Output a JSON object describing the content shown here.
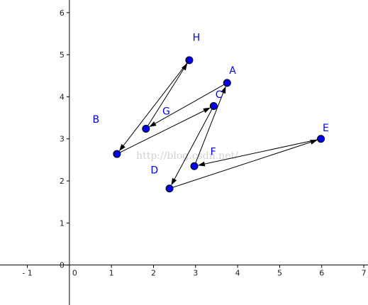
{
  "canvas": {
    "background": "#ffffff"
  },
  "axes": {
    "x_range": [
      -1.65,
      7.1
    ],
    "y_range": [
      -0.95,
      6.3
    ],
    "x_ticks": [
      -1,
      1,
      2,
      3,
      4,
      5,
      6,
      7
    ],
    "y_ticks": [
      0,
      1,
      2,
      3,
      4,
      5,
      6
    ],
    "x_tick_labels": [
      "- 1",
      "1",
      "2",
      "3",
      "4",
      "5",
      "6",
      "7"
    ],
    "y_tick_labels": [
      "0",
      "1",
      "2",
      "3",
      "4",
      "5",
      "6"
    ],
    "origin_x_label": "0",
    "axis_color": "#000000"
  },
  "points": [
    {
      "name": "A",
      "x": 3.75,
      "y": 4.33
    },
    {
      "name": "B",
      "x": 1.13,
      "y": 2.64
    },
    {
      "name": "C",
      "x": 3.43,
      "y": 3.78
    },
    {
      "name": "D",
      "x": 2.38,
      "y": 1.82
    },
    {
      "name": "E",
      "x": 5.98,
      "y": 3.0
    },
    {
      "name": "F",
      "x": 2.97,
      "y": 2.35
    },
    {
      "name": "G",
      "x": 1.82,
      "y": 3.24
    },
    {
      "name": "H",
      "x": 2.85,
      "y": 4.87
    }
  ],
  "labels": [
    {
      "text": "A",
      "x": 3.8,
      "y": 4.55
    },
    {
      "text": "B",
      "x": 0.55,
      "y": 3.38
    },
    {
      "text": "C",
      "x": 3.47,
      "y": 3.97
    },
    {
      "text": "D",
      "x": 1.93,
      "y": 2.18
    },
    {
      "text": "E",
      "x": 6.02,
      "y": 3.18
    },
    {
      "text": "F",
      "x": 3.35,
      "y": 2.62
    },
    {
      "text": "G",
      "x": 2.21,
      "y": 3.58
    },
    {
      "text": "H",
      "x": 2.93,
      "y": 5.33
    }
  ],
  "arrows": [
    {
      "from": "A",
      "to": "G"
    },
    {
      "from": "G",
      "to": "H"
    },
    {
      "from": "H",
      "to": "B"
    },
    {
      "from": "B",
      "to": "C"
    },
    {
      "from": "C",
      "to": "D"
    },
    {
      "from": "D",
      "to": "E"
    },
    {
      "from": "E",
      "to": "F"
    },
    {
      "from": "F",
      "to": "A"
    }
  ],
  "style": {
    "point_fill": "#0000ee",
    "point_stroke": "#000000",
    "arrow_color": "#000000",
    "label_color": "#0000ff"
  },
  "watermark": {
    "text": "http://blog.csdn.net/",
    "x": 2.8,
    "y": 2.52
  }
}
